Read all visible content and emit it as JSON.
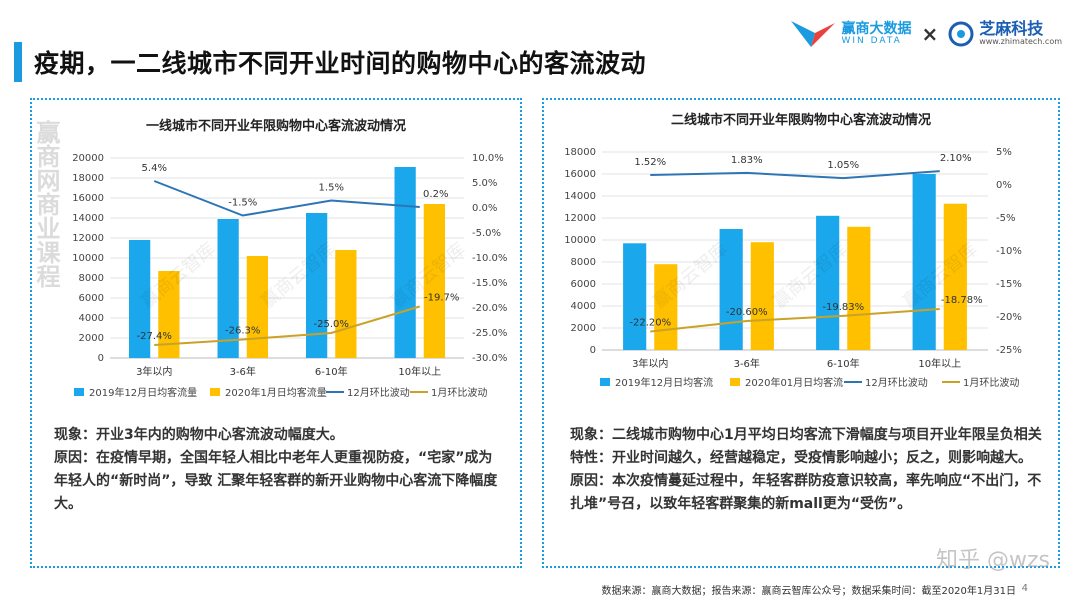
{
  "page": {
    "title": "疫期，一二线城市不同开业时间的购物中心的客流波动",
    "page_number": "4",
    "footer": "数据来源：赢商大数据；报告来源：赢商云智库公众号；数据采集时间：截至2020年1月31日",
    "zhihu_watermark": "知乎 @wzs",
    "side_watermark": "赢商网商业课程",
    "chart_watermark": "赢商云智库"
  },
  "logos": {
    "win_cn": "赢商大数据",
    "win_en": "WIN DATA",
    "separator": "×",
    "zm_cn": "芝麻科技",
    "zm_en": "www.zhimatech.com"
  },
  "colors": {
    "accent": "#1a9be0",
    "bar_dec": "#1aa7ec",
    "bar_jan": "#ffc000",
    "line_dec": "#2e75b6",
    "line_jan": "#c9a227"
  },
  "chart_data": [
    {
      "type": "bar",
      "title": "一线城市不同开业年限购物中心客流波动情况",
      "categories": [
        "3年以内",
        "3-6年",
        "6-10年",
        "10年以上"
      ],
      "ylim": [
        0,
        20000
      ],
      "yticks": [
        0,
        2000,
        4000,
        6000,
        8000,
        10000,
        12000,
        14000,
        16000,
        18000,
        20000
      ],
      "ytick_labels": [
        "0",
        "2000",
        "4000",
        "6000",
        "8000",
        "10000",
        "12000",
        "14000",
        "16000",
        "18000",
        "20000"
      ],
      "y2lim": [
        -30,
        10
      ],
      "y2ticks": [
        10,
        5,
        0,
        -5,
        -10,
        -15,
        -20,
        -25,
        -30
      ],
      "y2tick_labels": [
        "10.0%",
        "5.0%",
        "0.0%",
        "-5.0%",
        "-10.0%",
        "-15.0%",
        "-20.0%",
        "-25.0%",
        "-30.0%"
      ],
      "grid": true,
      "legend_position": "bottom",
      "series": [
        {
          "name": "2019年12月日均客流量",
          "kind": "bar",
          "values": [
            11800,
            13900,
            14500,
            19100
          ]
        },
        {
          "name": "2020年1月日均客流量",
          "kind": "bar",
          "values": [
            8700,
            10200,
            10800,
            15400
          ]
        },
        {
          "name": "12月环比波动",
          "kind": "line",
          "values": [
            5.4,
            -1.5,
            1.5,
            0.2
          ],
          "labels": [
            "5.4%",
            "-1.5%",
            "1.5%",
            "0.2%"
          ]
        },
        {
          "name": "1月环比波动",
          "kind": "line",
          "values": [
            -27.4,
            -26.3,
            -25.0,
            -19.7
          ],
          "labels": [
            "-27.4%",
            "-26.3%",
            "-25.0%",
            "-19.7%"
          ]
        }
      ]
    },
    {
      "type": "bar",
      "title": "二线城市不同开业年限购物中心客流波动情况",
      "categories": [
        "3年以内",
        "3-6年",
        "6-10年",
        "10年以上"
      ],
      "ylim": [
        0,
        18000
      ],
      "yticks": [
        0,
        2000,
        4000,
        6000,
        8000,
        10000,
        12000,
        14000,
        16000,
        18000
      ],
      "ytick_labels": [
        "0",
        "2000",
        "4000",
        "6000",
        "8000",
        "10000",
        "12000",
        "14000",
        "16000",
        "18000"
      ],
      "y2lim": [
        -25,
        5
      ],
      "y2ticks": [
        5,
        0,
        -5,
        -10,
        -15,
        -20,
        -25
      ],
      "y2tick_labels": [
        "5%",
        "0%",
        "-5%",
        "-10%",
        "-15%",
        "-20%",
        "-25%"
      ],
      "grid": true,
      "legend_position": "bottom",
      "series": [
        {
          "name": "2019年12月日均客流",
          "kind": "bar",
          "values": [
            9700,
            11000,
            12200,
            16000
          ]
        },
        {
          "name": "2020年01月日均客流",
          "kind": "bar",
          "values": [
            7800,
            9800,
            11200,
            13300
          ]
        },
        {
          "name": "12月环比波动",
          "kind": "line",
          "values": [
            1.52,
            1.83,
            1.05,
            2.1
          ],
          "labels": [
            "1.52%",
            "1.83%",
            "1.05%",
            "2.10%"
          ]
        },
        {
          "name": "1月环比波动",
          "kind": "line",
          "values": [
            -22.2,
            -20.6,
            -19.83,
            -18.78
          ],
          "labels": [
            "-22.20%",
            "-20.60%",
            "-19.83%",
            "-18.78%"
          ]
        }
      ]
    }
  ],
  "text": {
    "left": {
      "phenomenon": "现象：开业3年内的购物中心客流波动幅度大。",
      "reason": "原因：在疫情早期，全国年轻人相比中老年人更重视防疫，“宅家”成为年轻人的“新时尚”，导致 汇聚年轻客群的新开业购物中心客流下降幅度大。"
    },
    "right": {
      "phenomenon": "现象：二线城市购物中心1月平均日均客流下滑幅度与项目开业年限呈负相关特性：开业时间越久，经营越稳定，受疫情影响越小；反之，则影响越大。",
      "reason": "原因：本次疫情蔓延过程中，年轻客群防疫意识较高，率先响应“不出门，不扎堆”号召，以致年轻客群聚集的新mall更为“受伤”。"
    }
  }
}
